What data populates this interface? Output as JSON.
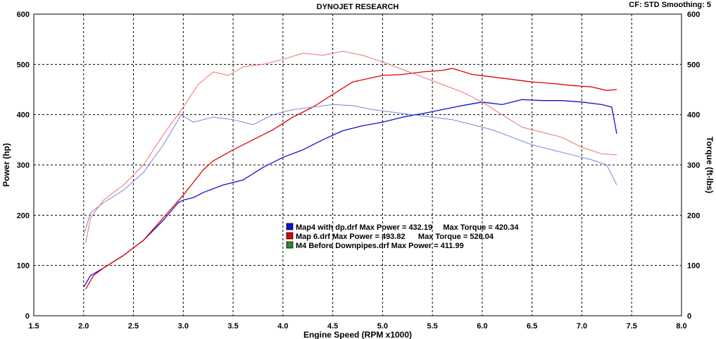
{
  "header": {
    "title": "DYNOJET RESEARCH",
    "info": "CF: STD  Smoothing: 5"
  },
  "colors": {
    "map4": "#1010d0",
    "map6": "#e00000",
    "map4_torque": "#8080e0",
    "map6_torque": "#f07070",
    "m4_before": "#2a8a2a"
  },
  "chart_data": {
    "type": "line",
    "title": "DYNOJET RESEARCH",
    "xlabel": "Engine Speed (RPM x1000)",
    "ylabel": "Power (hp)",
    "y2label": "Torque (ft-lbs)",
    "xlim": [
      1.5,
      8.0
    ],
    "ylim": [
      0,
      600
    ],
    "y2lim": [
      0,
      600
    ],
    "x_ticks": [
      "1.5",
      "2.0",
      "2.5",
      "3.0",
      "3.5",
      "4.0",
      "4.5",
      "5.0",
      "5.5",
      "6.0",
      "6.5",
      "7.0",
      "7.5",
      "8.0"
    ],
    "y_ticks": [
      "0",
      "100",
      "200",
      "300",
      "400",
      "500",
      "600"
    ],
    "y2_ticks": [
      "0",
      "100",
      "200",
      "300",
      "400",
      "500",
      "600"
    ],
    "grid": true,
    "legend": [
      {
        "text": "Map4 with dp.drf Max Power = 432.19     Max Torque = 420.34",
        "color": "#1010d0"
      },
      {
        "text": "Map 6.drf Max Power = 493.82      Max Torque = 526.04",
        "color": "#e00000"
      },
      {
        "text": "M4 Before Downpipes.drf Max Power = 411.99",
        "color": "#2a8a2a"
      }
    ],
    "series": [
      {
        "name": "Map4 with dp.drf",
        "kind": "power",
        "color": "#1010d0",
        "x": [
          2.0,
          2.07,
          2.2,
          2.4,
          2.6,
          2.8,
          2.95,
          3.0,
          3.1,
          3.2,
          3.4,
          3.6,
          3.8,
          4.0,
          4.2,
          4.4,
          4.6,
          4.8,
          5.0,
          5.2,
          5.4,
          5.6,
          5.8,
          6.0,
          6.2,
          6.4,
          6.6,
          6.8,
          7.0,
          7.2,
          7.3,
          7.35
        ],
        "y": [
          57,
          80,
          95,
          120,
          150,
          190,
          225,
          230,
          235,
          245,
          260,
          270,
          295,
          315,
          330,
          350,
          368,
          378,
          385,
          395,
          402,
          410,
          418,
          425,
          420,
          430,
          428,
          428,
          425,
          420,
          415,
          362
        ]
      },
      {
        "name": "Map 6.drf",
        "kind": "power",
        "color": "#e00000",
        "x": [
          2.02,
          2.1,
          2.2,
          2.4,
          2.6,
          2.8,
          3.0,
          3.1,
          3.2,
          3.3,
          3.5,
          3.7,
          3.9,
          4.1,
          4.3,
          4.5,
          4.7,
          5.0,
          5.2,
          5.4,
          5.6,
          5.7,
          5.9,
          6.1,
          6.3,
          6.5,
          6.7,
          6.9,
          7.1,
          7.25,
          7.35
        ],
        "y": [
          53,
          80,
          95,
          120,
          150,
          195,
          240,
          265,
          290,
          308,
          330,
          350,
          370,
          395,
          415,
          440,
          465,
          478,
          480,
          485,
          488,
          492,
          480,
          475,
          470,
          465,
          462,
          458,
          455,
          448,
          450
        ]
      },
      {
        "name": "Map4 with dp.drf",
        "kind": "torque",
        "color": "#8080e0",
        "x": [
          2.0,
          2.07,
          2.2,
          2.4,
          2.6,
          2.8,
          2.98,
          3.1,
          3.3,
          3.5,
          3.7,
          3.9,
          4.1,
          4.3,
          4.5,
          4.7,
          4.9,
          5.1,
          5.3,
          5.5,
          5.7,
          5.9,
          6.1,
          6.3,
          6.5,
          6.7,
          6.9,
          7.1,
          7.25,
          7.35
        ],
        "y": [
          160,
          205,
          225,
          250,
          285,
          340,
          400,
          385,
          395,
          390,
          380,
          400,
          410,
          415,
          420,
          418,
          410,
          405,
          400,
          395,
          390,
          380,
          370,
          355,
          340,
          330,
          320,
          310,
          300,
          260
        ]
      },
      {
        "name": "Map 6.drf",
        "kind": "torque",
        "color": "#f07070",
        "x": [
          2.02,
          2.07,
          2.2,
          2.4,
          2.6,
          2.8,
          3.0,
          3.15,
          3.3,
          3.45,
          3.6,
          3.8,
          4.0,
          4.2,
          4.4,
          4.6,
          4.8,
          5.0,
          5.2,
          5.4,
          5.6,
          5.8,
          6.0,
          6.2,
          6.4,
          6.6,
          6.8,
          7.0,
          7.2,
          7.35
        ],
        "y": [
          145,
          195,
          230,
          260,
          300,
          360,
          415,
          460,
          485,
          478,
          495,
          500,
          510,
          522,
          518,
          526,
          518,
          505,
          490,
          475,
          460,
          445,
          425,
          400,
          375,
          365,
          355,
          335,
          322,
          320
        ]
      }
    ]
  }
}
